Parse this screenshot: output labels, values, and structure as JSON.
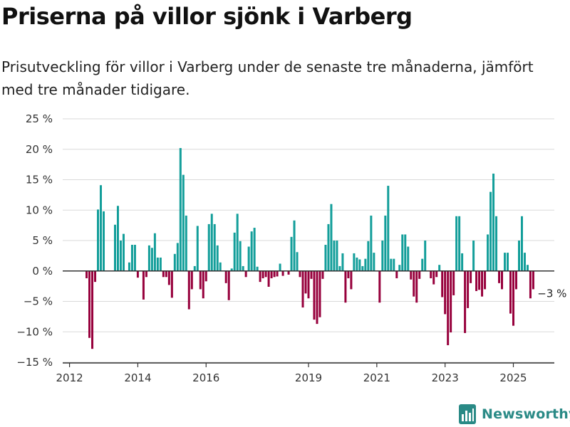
{
  "title": "Priserna på villor sjönk i Varberg",
  "subtitle": "Prisutveckling för villor i Varberg under de senaste tre månaderna, jämfört med tre månader tidigare.",
  "brand": {
    "name": "Newsworthy",
    "logo_icon": "newsworthy-chart-logo-icon"
  },
  "colors": {
    "positive": "#139e9a",
    "negative": "#97003c",
    "grid": "#d9d9d9",
    "axis": "#333333",
    "brand": "#2a8a86"
  },
  "chart_data": {
    "type": "bar",
    "grid": true,
    "ylim": [
      -15,
      25
    ],
    "yticks": [
      -15,
      -10,
      -5,
      0,
      5,
      10,
      15,
      20,
      25
    ],
    "ytick_labels": [
      "−15 %",
      "−10 %",
      "−5 %",
      "0 %",
      "5 %",
      "10 %",
      "15 %",
      "20 %",
      "25 %"
    ],
    "xlim": [
      2011.8,
      2026.2
    ],
    "xticks": [
      2012,
      2014,
      2016,
      2019,
      2021,
      2023,
      2025
    ],
    "xtick_labels": [
      "2012",
      "2014",
      "2016",
      "2019",
      "2021",
      "2023",
      "2025"
    ],
    "bar_width_months": 0.75,
    "annotation": {
      "text": "−3 %",
      "x": 2025.58,
      "y": -3
    },
    "series": [
      {
        "start": "2012-07",
        "interval": "month",
        "values": [
          -1.2,
          -11,
          -12.8,
          -1.8,
          10.1,
          14.1,
          9.8,
          0,
          0,
          0,
          7.6,
          10.7,
          5,
          6.1,
          0,
          1.4,
          4.3,
          4.3,
          -1.1,
          0,
          -4.7,
          -1,
          4.2,
          3.8,
          6.2,
          2.2,
          2.2,
          -1,
          -1,
          -2.3,
          -4.4,
          2.8,
          4.6,
          20.2,
          15.8,
          9.1,
          -6.3,
          -3,
          0.8,
          7.4,
          -3,
          -4.5,
          -1.7,
          7.7,
          9.4,
          7.7,
          4.2,
          1.4,
          0,
          -2,
          -4.8,
          0.4,
          6.3,
          9.4,
          4.9,
          0.8,
          -1,
          4,
          6.5,
          7.1,
          0.7,
          -1.8,
          -1.2,
          -1,
          -2.6,
          -1.2,
          -1,
          -0.9,
          1.2,
          -0.8,
          0,
          -0.6,
          5.6,
          8.3,
          3.1,
          -1,
          -6,
          -3.7,
          -4.5,
          -1.3,
          -8,
          -8.7,
          -7.6,
          -1.3,
          4.3,
          7.7,
          11,
          5,
          5,
          0.8,
          2.9,
          -5.2,
          -1.2,
          -3,
          2.9,
          2.2,
          1.9,
          0.8,
          2,
          4.9,
          9.1,
          3,
          0,
          -5.2,
          5,
          9.1,
          14,
          2,
          2,
          -1.2,
          1,
          6,
          6,
          4,
          -1.4,
          -4.2,
          -5.2,
          -1.3,
          2,
          5,
          0,
          -1.2,
          -2.2,
          -1,
          1,
          -4.3,
          -7.1,
          -12.2,
          -10.1,
          -4,
          9,
          9,
          2.9,
          -10.2,
          -6.1,
          -2,
          5,
          -3.3,
          -3.1,
          -4.2,
          -3,
          6,
          13,
          16,
          9,
          -2,
          -3,
          3,
          3,
          -7,
          -9,
          -3,
          5,
          9,
          3,
          1,
          -4.5,
          -3
        ]
      }
    ]
  }
}
